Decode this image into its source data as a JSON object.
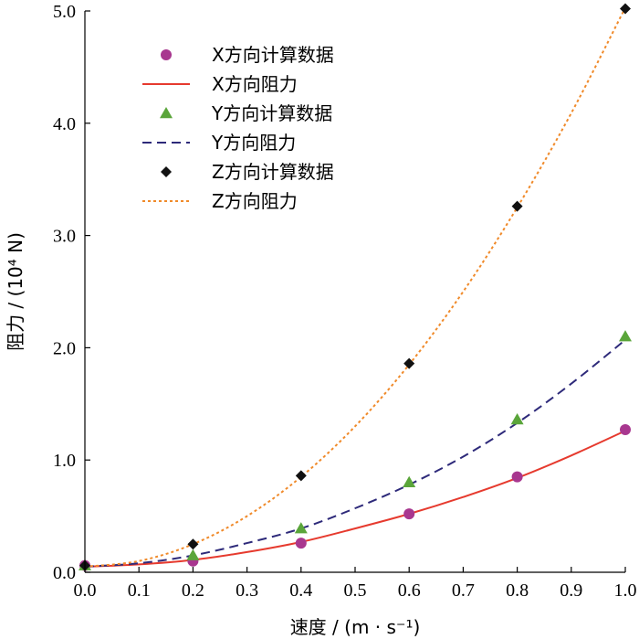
{
  "chart_data": {
    "type": "line",
    "xlabel": "速度 / (m · s⁻¹)",
    "ylabel": "阻力 / (10⁴ N)",
    "xlim": [
      0.0,
      1.0
    ],
    "ylim": [
      0.0,
      5.0
    ],
    "x_ticks": [
      "0.0",
      "0.1",
      "0.2",
      "0.3",
      "0.4",
      "0.5",
      "0.6",
      "0.7",
      "0.8",
      "0.9",
      "1.0"
    ],
    "y_ticks": [
      "0.0",
      "1.0",
      "2.0",
      "3.0",
      "4.0",
      "5.0"
    ],
    "grid": false,
    "legend_position": "top-left",
    "series": [
      {
        "name": "X方向计算数据",
        "kind": "scatter",
        "marker": "circle",
        "color": "#a8378f",
        "x": [
          0.0,
          0.2,
          0.4,
          0.6,
          0.8,
          1.0
        ],
        "y": [
          0.06,
          0.1,
          0.26,
          0.52,
          0.85,
          1.27
        ]
      },
      {
        "name": "X方向阻力",
        "kind": "line",
        "dash": "solid",
        "color": "#e63a2e",
        "x": [
          0.0,
          0.1,
          0.2,
          0.3,
          0.4,
          0.5,
          0.6,
          0.7,
          0.8,
          0.9,
          1.0
        ],
        "y": [
          0.05,
          0.07,
          0.11,
          0.18,
          0.27,
          0.39,
          0.52,
          0.67,
          0.84,
          1.04,
          1.26
        ]
      },
      {
        "name": "Y方向计算数据",
        "kind": "scatter",
        "marker": "triangle",
        "color": "#5aa53a",
        "x": [
          0.0,
          0.2,
          0.4,
          0.6,
          0.8,
          1.0
        ],
        "y": [
          0.06,
          0.15,
          0.39,
          0.8,
          1.36,
          2.1
        ]
      },
      {
        "name": "Y方向阻力",
        "kind": "line",
        "dash": "dashed",
        "color": "#2e2a7a",
        "x": [
          0.0,
          0.1,
          0.2,
          0.3,
          0.4,
          0.5,
          0.6,
          0.7,
          0.8,
          0.9,
          1.0
        ],
        "y": [
          0.05,
          0.08,
          0.15,
          0.26,
          0.39,
          0.57,
          0.78,
          1.03,
          1.33,
          1.68,
          2.07
        ]
      },
      {
        "name": "Z方向计算数据",
        "kind": "scatter",
        "marker": "diamond",
        "color": "#111111",
        "x": [
          0.0,
          0.2,
          0.4,
          0.6,
          0.8,
          1.0
        ],
        "y": [
          0.06,
          0.25,
          0.86,
          1.86,
          3.26,
          5.02
        ]
      },
      {
        "name": "Z方向阻力",
        "kind": "line",
        "dash": "dotted",
        "color": "#f08a2a",
        "x": [
          0.0,
          0.1,
          0.2,
          0.3,
          0.4,
          0.5,
          0.6,
          0.7,
          0.8,
          0.9,
          1.0
        ],
        "y": [
          0.05,
          0.1,
          0.25,
          0.5,
          0.85,
          1.3,
          1.85,
          2.5,
          3.25,
          4.09,
          5.03
        ]
      }
    ]
  }
}
